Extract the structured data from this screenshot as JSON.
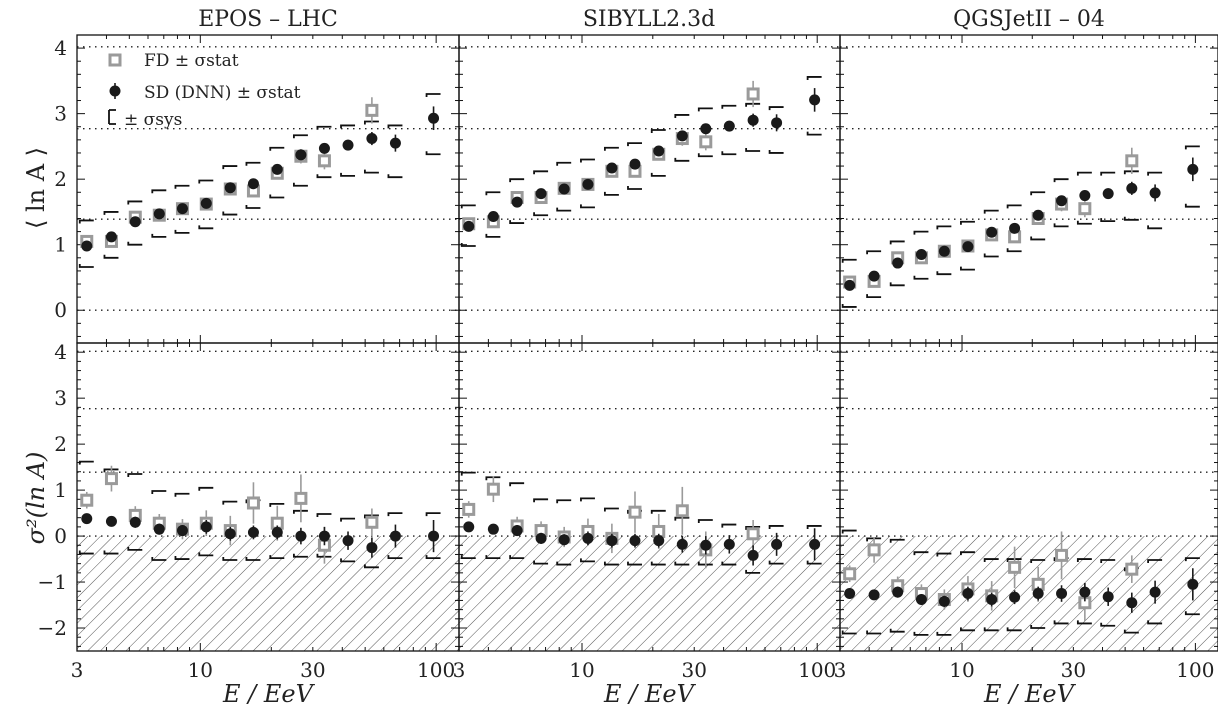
{
  "figure": {
    "xlabel": "E / EeV",
    "ylabel_top": "⟨ ln A ⟩",
    "ylabel_bottom": "σ²(ln A)",
    "legend": {
      "fd": "FD ± σstat",
      "sd": "SD (DNN) ± σstat",
      "sys": "± σsys"
    },
    "colors": {
      "fd": "#9a9a9a",
      "sd": "#1a1a1a",
      "sys": "#111111",
      "hatch": "#555555"
    }
  },
  "chart_data": [
    {
      "type": "scatter",
      "panel": "EPOS-LHC mean lnA",
      "title": "EPOS – LHC",
      "xscale": "log",
      "xlim": [
        3,
        125
      ],
      "ylim": [
        -0.5,
        4.2
      ],
      "yticks": [
        0,
        1,
        2,
        3,
        4
      ],
      "xticks": [
        3,
        10,
        30,
        100
      ],
      "reference_lines": [
        0,
        1.39,
        2.77,
        4.02
      ],
      "fd": {
        "x": [
          3.3,
          4.2,
          5.3,
          6.7,
          8.4,
          10.6,
          13.4,
          16.8,
          21.2,
          26.7,
          33.6,
          53.4
        ],
        "y": [
          1.05,
          1.05,
          1.42,
          1.45,
          1.55,
          1.62,
          1.85,
          1.82,
          2.09,
          2.35,
          2.28,
          3.05
        ],
        "err": [
          0.06,
          0.06,
          0.06,
          0.06,
          0.06,
          0.07,
          0.07,
          0.08,
          0.09,
          0.11,
          0.13,
          0.2
        ]
      },
      "sd": {
        "x": [
          3.3,
          4.2,
          5.3,
          6.7,
          8.4,
          10.6,
          13.4,
          16.8,
          21.2,
          26.7,
          33.6,
          42.3,
          53.4,
          67.2,
          97.5
        ],
        "y": [
          0.98,
          1.12,
          1.35,
          1.47,
          1.55,
          1.63,
          1.87,
          1.93,
          2.15,
          2.37,
          2.47,
          2.52,
          2.62,
          2.55,
          2.93
        ],
        "err": [
          0.04,
          0.04,
          0.04,
          0.04,
          0.04,
          0.05,
          0.05,
          0.05,
          0.06,
          0.06,
          0.07,
          0.08,
          0.1,
          0.13,
          0.18
        ]
      },
      "sys": {
        "x": [
          3.3,
          4.2,
          5.3,
          6.7,
          8.4,
          10.6,
          13.4,
          16.8,
          21.2,
          26.7,
          33.6,
          42.3,
          53.4,
          67.2,
          97.5
        ],
        "lo": [
          0.66,
          0.8,
          1.0,
          1.12,
          1.18,
          1.25,
          1.46,
          1.56,
          1.72,
          1.9,
          2.03,
          2.05,
          2.1,
          2.03,
          2.38
        ],
        "hi": [
          1.37,
          1.5,
          1.66,
          1.83,
          1.9,
          1.98,
          2.2,
          2.25,
          2.48,
          2.67,
          2.8,
          2.82,
          2.88,
          2.82,
          3.3
        ]
      }
    },
    {
      "type": "scatter",
      "panel": "SIBYLL2.3d mean lnA",
      "title": "SIBYLL2.3d",
      "xscale": "log",
      "xlim": [
        3,
        125
      ],
      "ylim": [
        -0.5,
        4.2
      ],
      "yticks": [
        0,
        1,
        2,
        3,
        4
      ],
      "xticks": [
        3,
        10,
        30,
        100
      ],
      "reference_lines": [
        0,
        1.39,
        2.77,
        4.02
      ],
      "fd": {
        "x": [
          3.3,
          4.2,
          5.3,
          6.7,
          8.4,
          10.6,
          13.4,
          16.8,
          21.2,
          26.7,
          33.6,
          53.4
        ],
        "y": [
          1.32,
          1.35,
          1.72,
          1.72,
          1.86,
          1.92,
          2.12,
          2.12,
          2.38,
          2.62,
          2.57,
          3.3
        ],
        "err": [
          0.06,
          0.06,
          0.06,
          0.06,
          0.06,
          0.07,
          0.07,
          0.08,
          0.09,
          0.11,
          0.13,
          0.2
        ]
      },
      "sd": {
        "x": [
          3.3,
          4.2,
          5.3,
          6.7,
          8.4,
          10.6,
          13.4,
          16.8,
          21.2,
          26.7,
          33.6,
          42.3,
          53.4,
          67.2,
          97.5
        ],
        "y": [
          1.28,
          1.43,
          1.65,
          1.78,
          1.85,
          1.92,
          2.17,
          2.23,
          2.43,
          2.66,
          2.77,
          2.81,
          2.9,
          2.86,
          3.21
        ],
        "err": [
          0.04,
          0.04,
          0.04,
          0.04,
          0.04,
          0.05,
          0.05,
          0.05,
          0.06,
          0.06,
          0.07,
          0.08,
          0.1,
          0.13,
          0.18
        ]
      },
      "sys": {
        "x": [
          3.3,
          4.2,
          5.3,
          6.7,
          8.4,
          10.6,
          13.4,
          16.8,
          21.2,
          26.7,
          33.6,
          42.3,
          53.4,
          67.2,
          97.5
        ],
        "lo": [
          0.98,
          1.12,
          1.33,
          1.45,
          1.52,
          1.57,
          1.76,
          1.85,
          2.05,
          2.28,
          2.35,
          2.38,
          2.43,
          2.4,
          2.68
        ],
        "hi": [
          1.6,
          1.8,
          2.0,
          2.12,
          2.25,
          2.3,
          2.48,
          2.55,
          2.75,
          2.98,
          3.08,
          3.12,
          3.15,
          3.1,
          3.56
        ]
      }
    },
    {
      "type": "scatter",
      "panel": "QGSJetII-04 mean lnA",
      "title": "QGSJetII – 04",
      "xscale": "log",
      "xlim": [
        3,
        125
      ],
      "ylim": [
        -0.5,
        4.2
      ],
      "yticks": [
        0,
        1,
        2,
        3,
        4
      ],
      "xticks": [
        3,
        10,
        30,
        100
      ],
      "reference_lines": [
        0,
        1.39,
        2.77,
        4.02
      ],
      "fd": {
        "x": [
          3.3,
          4.2,
          5.3,
          6.7,
          8.4,
          10.6,
          13.4,
          16.8,
          21.2,
          26.7,
          33.6,
          53.4
        ],
        "y": [
          0.43,
          0.44,
          0.8,
          0.8,
          0.9,
          0.98,
          1.15,
          1.12,
          1.4,
          1.62,
          1.55,
          2.28
        ],
        "err": [
          0.06,
          0.06,
          0.06,
          0.06,
          0.06,
          0.07,
          0.07,
          0.08,
          0.09,
          0.11,
          0.13,
          0.2
        ]
      },
      "sd": {
        "x": [
          3.3,
          4.2,
          5.3,
          6.7,
          8.4,
          10.6,
          13.4,
          16.8,
          21.2,
          26.7,
          33.6,
          42.3,
          53.4,
          67.2,
          97.5
        ],
        "y": [
          0.38,
          0.52,
          0.72,
          0.85,
          0.9,
          0.97,
          1.19,
          1.25,
          1.45,
          1.67,
          1.75,
          1.78,
          1.86,
          1.79,
          2.15
        ],
        "err": [
          0.04,
          0.04,
          0.04,
          0.04,
          0.04,
          0.05,
          0.05,
          0.05,
          0.06,
          0.06,
          0.07,
          0.08,
          0.1,
          0.13,
          0.18
        ]
      },
      "sys": {
        "x": [
          3.3,
          4.2,
          5.3,
          6.7,
          8.4,
          10.6,
          13.4,
          16.8,
          21.2,
          26.7,
          33.6,
          42.3,
          53.4,
          67.2,
          97.5
        ],
        "lo": [
          0.05,
          0.2,
          0.38,
          0.48,
          0.55,
          0.62,
          0.82,
          0.9,
          1.08,
          1.28,
          1.32,
          1.36,
          1.38,
          1.25,
          1.58
        ],
        "hi": [
          0.77,
          0.9,
          1.05,
          1.2,
          1.28,
          1.35,
          1.52,
          1.6,
          1.8,
          2.0,
          2.1,
          2.1,
          2.12,
          2.1,
          2.5
        ]
      }
    },
    {
      "type": "scatter",
      "panel": "EPOS-LHC variance lnA",
      "xscale": "log",
      "xlim": [
        3,
        125
      ],
      "ylim": [
        -2.5,
        4.2
      ],
      "yticks": [
        -2,
        -1,
        0,
        1,
        2,
        3,
        4
      ],
      "xticks": [
        3,
        10,
        30,
        100
      ],
      "reference_lines": [
        0,
        1.39,
        2.77,
        4.02
      ],
      "hatch_below": 0,
      "fd": {
        "x": [
          3.3,
          4.2,
          5.3,
          6.7,
          8.4,
          10.6,
          13.4,
          16.8,
          21.2,
          26.7,
          33.6,
          53.4
        ],
        "y": [
          0.78,
          1.25,
          0.45,
          0.28,
          0.15,
          0.28,
          0.12,
          0.72,
          0.28,
          0.82,
          -0.2,
          0.3
        ],
        "err": [
          0.18,
          0.28,
          0.2,
          0.2,
          0.22,
          0.28,
          0.32,
          0.45,
          0.38,
          0.52,
          0.4,
          0.3
        ]
      },
      "sd": {
        "x": [
          3.3,
          4.2,
          5.3,
          6.7,
          8.4,
          10.6,
          13.4,
          16.8,
          21.2,
          26.7,
          33.6,
          42.3,
          53.4,
          67.2,
          97.5
        ],
        "y": [
          0.38,
          0.32,
          0.3,
          0.15,
          0.12,
          0.2,
          0.05,
          0.08,
          0.08,
          0.0,
          0.0,
          -0.1,
          -0.25,
          0.0,
          0.0
        ],
        "err": [
          0.1,
          0.1,
          0.12,
          0.12,
          0.12,
          0.15,
          0.15,
          0.15,
          0.15,
          0.18,
          0.2,
          0.2,
          0.22,
          0.25,
          0.35
        ]
      },
      "sys": {
        "x": [
          3.3,
          4.2,
          5.3,
          6.7,
          8.4,
          10.6,
          13.4,
          16.8,
          21.2,
          26.7,
          33.6,
          42.3,
          53.4,
          67.2,
          97.5
        ],
        "lo": [
          -0.38,
          -0.38,
          -0.3,
          -0.52,
          -0.5,
          -0.42,
          -0.52,
          -0.52,
          -0.48,
          -0.45,
          -0.45,
          -0.55,
          -0.68,
          -0.48,
          -0.48
        ],
        "hi": [
          1.62,
          1.45,
          1.35,
          0.98,
          0.92,
          1.05,
          0.75,
          0.78,
          0.7,
          0.55,
          0.48,
          0.38,
          0.45,
          0.5,
          0.5
        ]
      }
    },
    {
      "type": "scatter",
      "panel": "SIBYLL2.3d variance lnA",
      "xscale": "log",
      "xlim": [
        3,
        125
      ],
      "ylim": [
        -2.5,
        4.2
      ],
      "yticks": [
        -2,
        -1,
        0,
        1,
        2,
        3,
        4
      ],
      "xticks": [
        3,
        10,
        30,
        100
      ],
      "reference_lines": [
        0,
        1.39,
        2.77,
        4.02
      ],
      "hatch_below": 0,
      "fd": {
        "x": [
          3.3,
          4.2,
          5.3,
          6.7,
          8.4,
          10.6,
          13.4,
          16.8,
          21.2,
          26.7,
          33.6,
          53.4
        ],
        "y": [
          0.58,
          1.02,
          0.22,
          0.12,
          -0.02,
          0.1,
          -0.05,
          0.52,
          0.1,
          0.55,
          -0.3,
          0.05
        ],
        "err": [
          0.18,
          0.28,
          0.2,
          0.2,
          0.22,
          0.28,
          0.32,
          0.45,
          0.38,
          0.52,
          0.4,
          0.3
        ]
      },
      "sd": {
        "x": [
          3.3,
          4.2,
          5.3,
          6.7,
          8.4,
          10.6,
          13.4,
          16.8,
          21.2,
          26.7,
          33.6,
          42.3,
          53.4,
          67.2,
          97.5
        ],
        "y": [
          0.2,
          0.15,
          0.12,
          -0.05,
          -0.08,
          -0.05,
          -0.1,
          -0.1,
          -0.1,
          -0.18,
          -0.2,
          -0.18,
          -0.42,
          -0.18,
          -0.18
        ],
        "err": [
          0.1,
          0.1,
          0.12,
          0.12,
          0.12,
          0.15,
          0.15,
          0.15,
          0.15,
          0.18,
          0.2,
          0.2,
          0.22,
          0.25,
          0.35
        ]
      },
      "sys": {
        "x": [
          3.3,
          4.2,
          5.3,
          6.7,
          8.4,
          10.6,
          13.4,
          16.8,
          21.2,
          26.7,
          33.6,
          42.3,
          53.4,
          67.2,
          97.5
        ],
        "lo": [
          -0.48,
          -0.48,
          -0.48,
          -0.6,
          -0.62,
          -0.55,
          -0.62,
          -0.62,
          -0.62,
          -0.62,
          -0.62,
          -0.62,
          -0.8,
          -0.6,
          -0.6
        ],
        "hi": [
          1.38,
          1.28,
          1.15,
          0.8,
          0.78,
          0.82,
          0.6,
          0.55,
          0.55,
          0.4,
          0.35,
          0.25,
          0.2,
          0.22,
          0.22
        ]
      }
    },
    {
      "type": "scatter",
      "panel": "QGSJetII-04 variance lnA",
      "xscale": "log",
      "xlim": [
        3,
        125
      ],
      "ylim": [
        -2.5,
        4.2
      ],
      "yticks": [
        -2,
        -1,
        0,
        1,
        2,
        3,
        4
      ],
      "xticks": [
        3,
        10,
        30,
        100
      ],
      "reference_lines": [
        0,
        1.39,
        2.77,
        4.02
      ],
      "hatch_below": 0,
      "fd": {
        "x": [
          3.3,
          4.2,
          5.3,
          6.7,
          8.4,
          10.6,
          13.4,
          16.8,
          21.2,
          26.7,
          33.6,
          53.4
        ],
        "y": [
          -0.82,
          -0.3,
          -1.08,
          -1.25,
          -1.38,
          -1.15,
          -1.3,
          -0.68,
          -1.05,
          -0.42,
          -1.45,
          -0.72
        ],
        "err": [
          0.18,
          0.28,
          0.2,
          0.2,
          0.22,
          0.28,
          0.32,
          0.45,
          0.38,
          0.52,
          0.4,
          0.3
        ]
      },
      "sd": {
        "x": [
          3.3,
          4.2,
          5.3,
          6.7,
          8.4,
          10.6,
          13.4,
          16.8,
          21.2,
          26.7,
          33.6,
          42.3,
          53.4,
          67.2,
          97.5
        ],
        "y": [
          -1.25,
          -1.28,
          -1.22,
          -1.38,
          -1.42,
          -1.25,
          -1.38,
          -1.33,
          -1.25,
          -1.25,
          -1.22,
          -1.32,
          -1.45,
          -1.22,
          -1.05
        ],
        "err": [
          0.1,
          0.1,
          0.12,
          0.12,
          0.12,
          0.15,
          0.15,
          0.15,
          0.15,
          0.18,
          0.2,
          0.2,
          0.22,
          0.25,
          0.35
        ]
      },
      "sys": {
        "x": [
          3.3,
          4.2,
          5.3,
          6.7,
          8.4,
          10.6,
          13.4,
          16.8,
          21.2,
          26.7,
          33.6,
          42.3,
          53.4,
          67.2,
          97.5
        ],
        "lo": [
          -2.12,
          -2.12,
          -2.08,
          -2.15,
          -2.15,
          -2.05,
          -2.05,
          -2.05,
          -2.0,
          -1.9,
          -1.9,
          -1.95,
          -2.1,
          -1.9,
          -1.7
        ],
        "hi": [
          0.12,
          -0.05,
          -0.08,
          -0.35,
          -0.38,
          -0.35,
          -0.5,
          -0.5,
          -0.52,
          -0.48,
          -0.5,
          -0.52,
          -0.7,
          -0.52,
          -0.48
        ]
      }
    }
  ]
}
